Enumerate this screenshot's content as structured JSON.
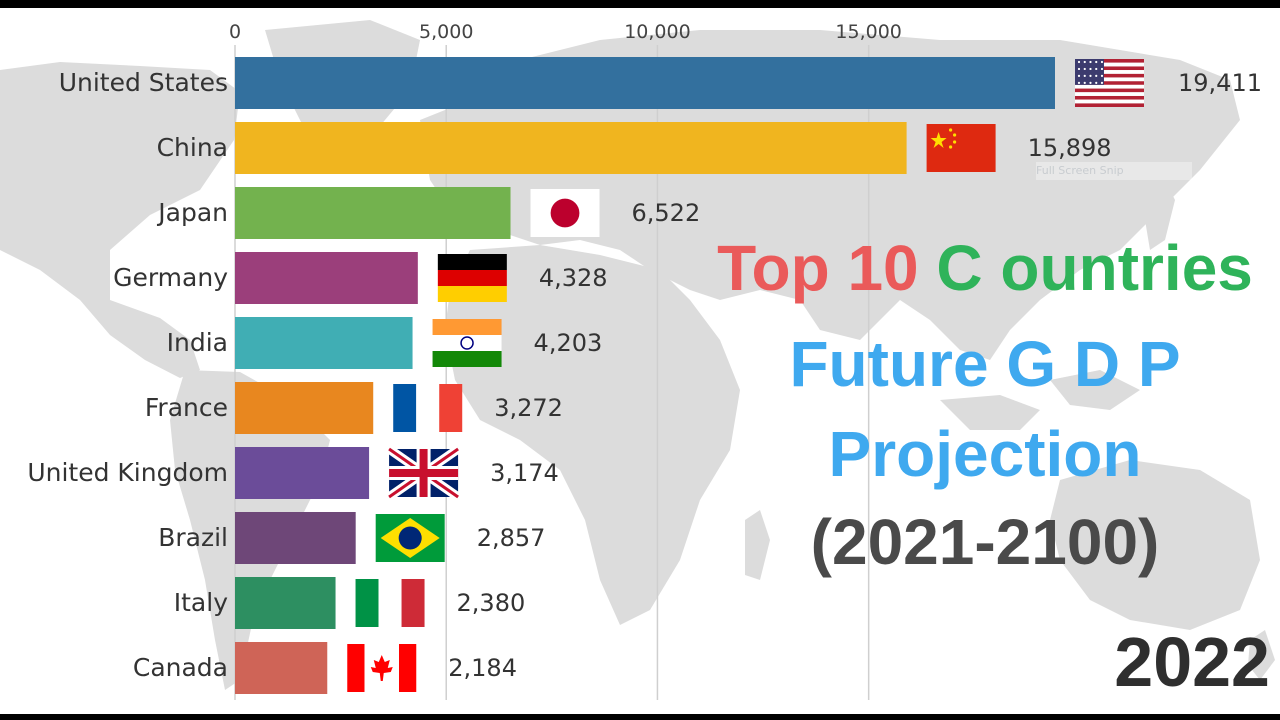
{
  "page": {
    "title_parts": [
      "Top 10",
      "C ountries"
    ],
    "title_line_2": "Future G D P",
    "title_line_3": "Projection",
    "title_line_4": "(2021-2100)",
    "year": "2022",
    "watermark": "Full Screen Snip"
  },
  "chart_data": {
    "type": "bar",
    "orientation": "horizontal",
    "title": "",
    "xlabel": "",
    "ylabel": "",
    "xlim": [
      0,
      19411
    ],
    "x_ticks": [
      0,
      5000,
      10000,
      15000
    ],
    "x_tick_labels": [
      "0",
      "5,000",
      "10,000",
      "15,000"
    ],
    "grid": true,
    "categories": [
      "United States",
      "China",
      "Japan",
      "Germany",
      "India",
      "France",
      "United Kingdom",
      "Brazil",
      "Italy",
      "Canada"
    ],
    "values": [
      19411,
      15898,
      6522,
      4328,
      4203,
      3272,
      3174,
      2857,
      2380,
      2184
    ],
    "value_labels": [
      "19,411",
      "15,898",
      "6,522",
      "4,328",
      "4,203",
      "3,272",
      "3,174",
      "2,857",
      "2,380",
      "2,184"
    ],
    "colors": [
      "#33709e",
      "#f0b51f",
      "#73b24e",
      "#9b3f7b",
      "#40aeb4",
      "#e8871f",
      "#6b4c99",
      "#6e4778",
      "#2d8f61",
      "#cf6457"
    ],
    "flags": [
      "us-flag-icon",
      "china-flag-icon",
      "japan-flag-icon",
      "germany-flag-icon",
      "india-flag-icon",
      "france-flag-icon",
      "uk-flag-icon",
      "brazil-flag-icon",
      "italy-flag-icon",
      "canada-flag-icon"
    ]
  }
}
